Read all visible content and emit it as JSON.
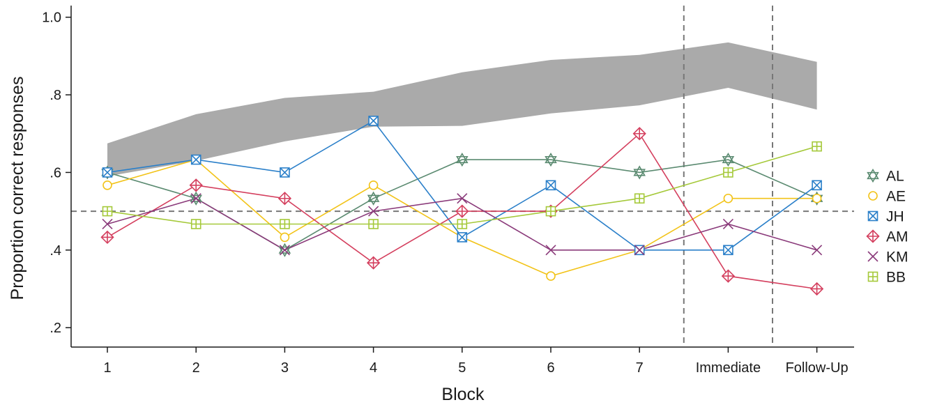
{
  "chart_data": {
    "type": "line",
    "title": "",
    "xlabel": "Block",
    "ylabel": "Proportion correct responses",
    "categories": [
      "1",
      "2",
      "3",
      "4",
      "5",
      "6",
      "7",
      "Immediate",
      "Follow-Up"
    ],
    "ylim": [
      0.15,
      1.03
    ],
    "yticks": [
      0.2,
      0.4,
      0.6,
      0.8,
      1.0
    ],
    "ytick_labels": [
      ".2",
      ".4",
      ".6",
      ".8",
      "1.0"
    ],
    "reference_line_y": 0.5,
    "phase_separators_after": [
      "7",
      "Immediate"
    ],
    "band": {
      "color": "#aaaaaa",
      "upper": [
        0.675,
        0.75,
        0.792,
        0.808,
        0.858,
        0.89,
        0.903,
        0.935,
        0.885
      ],
      "lower": [
        0.59,
        0.63,
        0.68,
        0.718,
        0.72,
        0.752,
        0.773,
        0.818,
        0.762
      ]
    },
    "legend_position": "right",
    "series": [
      {
        "name": "AL",
        "color": "#5a8a70",
        "marker": "star",
        "values": [
          0.6,
          0.533,
          0.4,
          0.533,
          0.633,
          0.633,
          0.6,
          0.633,
          0.533
        ]
      },
      {
        "name": "AE",
        "color": "#f2c318",
        "marker": "circle",
        "values": [
          0.567,
          0.633,
          0.433,
          0.567,
          0.433,
          0.333,
          0.4,
          0.533,
          0.533
        ]
      },
      {
        "name": "JH",
        "color": "#2a7fc9",
        "marker": "boxx",
        "values": [
          0.6,
          0.633,
          0.6,
          0.733,
          0.433,
          0.567,
          0.4,
          0.4,
          0.567
        ]
      },
      {
        "name": "AM",
        "color": "#d43f5e",
        "marker": "diamondplus",
        "values": [
          0.433,
          0.567,
          0.533,
          0.367,
          0.5,
          0.5,
          0.7,
          0.333,
          0.3
        ]
      },
      {
        "name": "KM",
        "color": "#8a3a7a",
        "marker": "x",
        "values": [
          0.467,
          0.533,
          0.4,
          0.5,
          0.533,
          0.4,
          0.4,
          0.467,
          0.4
        ]
      },
      {
        "name": "BB",
        "color": "#a5c93a",
        "marker": "boxplus",
        "values": [
          0.5,
          0.467,
          0.467,
          0.467,
          0.467,
          0.5,
          0.533,
          0.6,
          0.667
        ]
      }
    ]
  }
}
